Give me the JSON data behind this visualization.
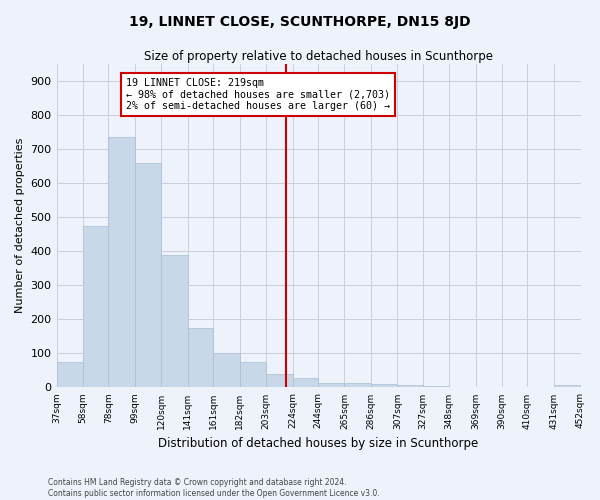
{
  "title": "19, LINNET CLOSE, SCUNTHORPE, DN15 8JD",
  "subtitle": "Size of property relative to detached houses in Scunthorpe",
  "xlabel": "Distribution of detached houses by size in Scunthorpe",
  "ylabel": "Number of detached properties",
  "bar_color": "#c8d8e8",
  "bar_edgecolor": "#a8c0d4",
  "background_color": "#eef2fa",
  "grid_color": "#ccccdd",
  "vline_x": 219,
  "vline_color": "#cc0000",
  "annotation_title": "19 LINNET CLOSE: 219sqm",
  "annotation_line1": "← 98% of detached houses are smaller (2,703)",
  "annotation_line2": "2% of semi-detached houses are larger (60) →",
  "annotation_box_color": "white",
  "annotation_border_color": "#cc0000",
  "bin_edges": [
    37,
    58,
    78,
    99,
    120,
    141,
    161,
    182,
    203,
    224,
    244,
    265,
    286,
    307,
    327,
    348,
    369,
    390,
    410,
    431,
    452
  ],
  "bar_heights": [
    75,
    475,
    735,
    660,
    390,
    175,
    100,
    75,
    40,
    27,
    13,
    13,
    10,
    8,
    5,
    0,
    0,
    0,
    0,
    8
  ],
  "ylim": [
    0,
    950
  ],
  "yticks": [
    0,
    100,
    200,
    300,
    400,
    500,
    600,
    700,
    800,
    900
  ],
  "footnote1": "Contains HM Land Registry data © Crown copyright and database right 2024.",
  "footnote2": "Contains public sector information licensed under the Open Government Licence v3.0."
}
